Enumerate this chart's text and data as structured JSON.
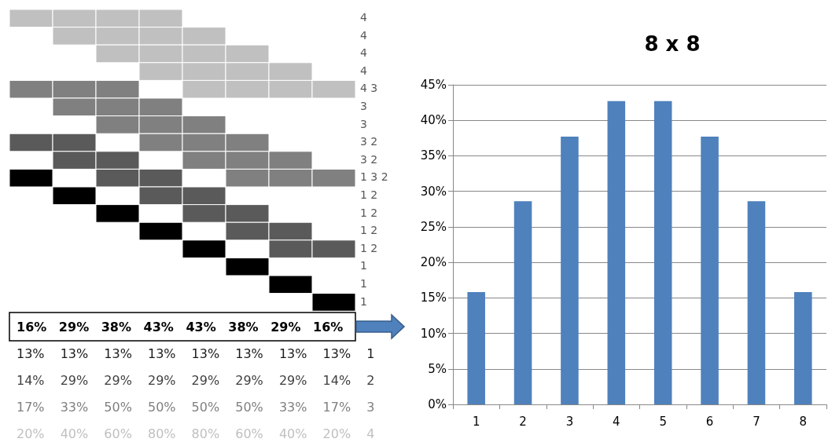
{
  "chart_data": [
    {
      "type": "other",
      "annotations": [
        "4",
        "4",
        "4",
        "4",
        "4 3",
        "3",
        "3",
        "3 2",
        "3 2",
        "1 3 2",
        "1 2",
        "1 2",
        "1 2",
        "1 2",
        "1",
        "1",
        "1"
      ]
    },
    {
      "type": "other",
      "annotations": [
        "16% 29% 38% 43% 43% 38% 29% 16%",
        "13% 13% 13% 13% 13% 13% 13% 13% 1",
        "14% 29% 29% 29% 29% 29% 29% 14% 2",
        "17% 33% 50% 50% 50% 50% 33% 17% 3",
        "20% 40% 60% 80% 80% 60% 40% 20% 4"
      ]
    },
    {
      "type": "bar",
      "title": "8 x 8",
      "categories": [
        "1",
        "2",
        "3",
        "4",
        "5",
        "6",
        "7",
        "8"
      ],
      "values": [
        15.8,
        28.6,
        37.7,
        42.7,
        42.7,
        37.7,
        28.6,
        15.8
      ],
      "color": "#4f81bd",
      "ylim": [
        0,
        45
      ],
      "yticks": [
        {
          "value": 0,
          "label": "0%"
        },
        {
          "value": 5,
          "label": "5%"
        },
        {
          "value": 10,
          "label": "10%"
        },
        {
          "value": 15,
          "label": "15%"
        },
        {
          "value": 20,
          "label": "20%"
        },
        {
          "value": 25,
          "label": "25%"
        },
        {
          "value": 30,
          "label": "30%"
        },
        {
          "value": 35,
          "label": "35%"
        },
        {
          "value": 40,
          "label": "40%"
        },
        {
          "value": 45,
          "label": "45%"
        }
      ],
      "grid": "y"
    }
  ]
}
